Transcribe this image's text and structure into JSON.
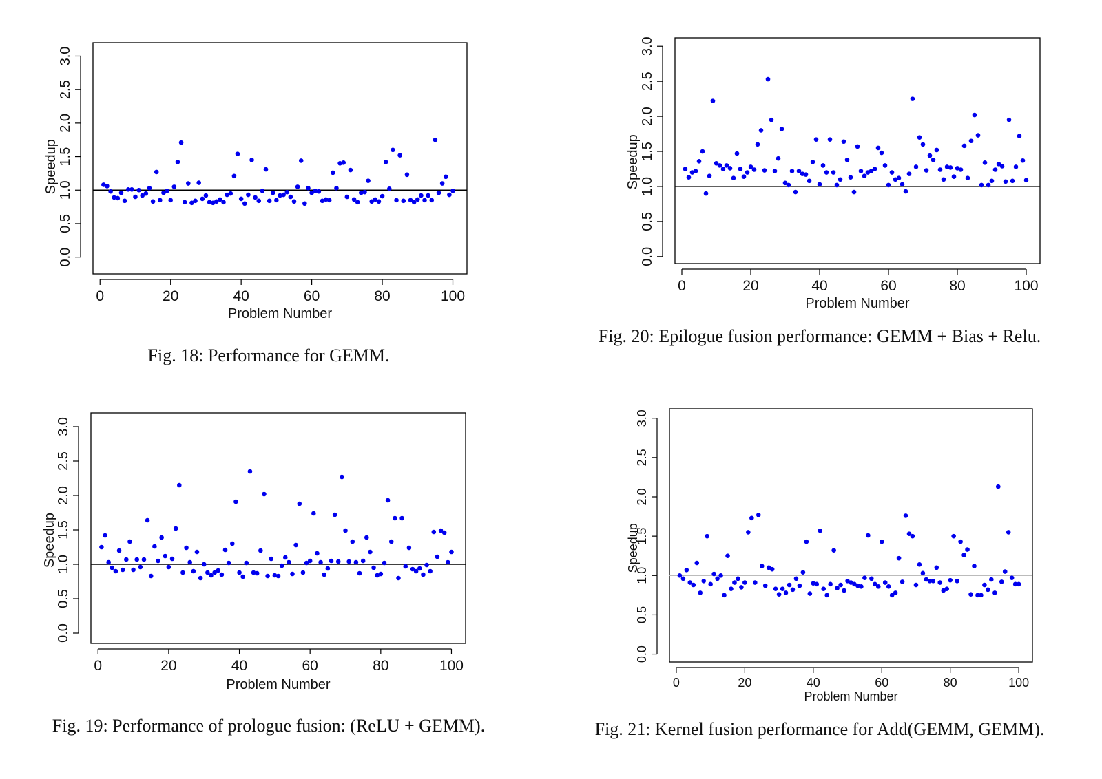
{
  "chart_data": [
    {
      "type": "scatter",
      "caption": "Fig. 18: Performance for GEMM.",
      "xlabel": "Problem Number",
      "ylabel": "Speedup",
      "xlim": [
        -2,
        104
      ],
      "ylim": [
        -0.25,
        3.2
      ],
      "xticks": [
        0,
        20,
        40,
        60,
        80,
        100
      ],
      "yticks": [
        0.0,
        0.5,
        1.0,
        1.5,
        2.0,
        2.5,
        3.0
      ],
      "reference_line": 1.0,
      "reference_color": "#000000",
      "point_color": "#0000ee",
      "grid": false,
      "x": [
        1,
        2,
        3,
        4,
        5,
        6,
        7,
        8,
        9,
        10,
        11,
        12,
        13,
        14,
        15,
        16,
        17,
        18,
        19,
        20,
        21,
        22,
        23,
        24,
        25,
        26,
        27,
        28,
        29,
        30,
        31,
        32,
        33,
        34,
        35,
        36,
        37,
        38,
        39,
        40,
        41,
        42,
        43,
        44,
        45,
        46,
        47,
        48,
        49,
        50,
        51,
        52,
        53,
        54,
        55,
        56,
        57,
        58,
        59,
        60,
        61,
        62,
        63,
        64,
        65,
        66,
        67,
        68,
        69,
        70,
        71,
        72,
        73,
        74,
        75,
        76,
        77,
        78,
        79,
        80,
        81,
        82,
        83,
        84,
        85,
        86,
        87,
        88,
        89,
        90,
        91,
        92,
        93,
        94,
        95,
        96,
        97,
        98,
        99,
        100
      ],
      "y": [
        1.08,
        1.06,
        0.98,
        0.89,
        0.88,
        0.96,
        0.84,
        1.01,
        1.01,
        0.9,
        1.0,
        0.92,
        0.95,
        1.03,
        0.83,
        1.27,
        0.85,
        0.96,
        0.99,
        0.85,
        1.05,
        1.42,
        1.71,
        0.82,
        1.1,
        0.81,
        0.84,
        1.11,
        0.87,
        0.92,
        0.82,
        0.81,
        0.83,
        0.86,
        0.82,
        0.93,
        0.95,
        1.21,
        1.54,
        0.87,
        0.8,
        0.93,
        1.45,
        0.89,
        0.84,
        0.99,
        1.31,
        0.84,
        0.96,
        0.85,
        0.92,
        0.93,
        0.97,
        0.9,
        0.83,
        1.05,
        1.44,
        0.8,
        1.03,
        0.96,
        0.99,
        0.98,
        0.84,
        0.86,
        0.85,
        1.26,
        1.03,
        1.4,
        1.41,
        0.9,
        1.3,
        0.86,
        0.82,
        0.96,
        0.97,
        1.14,
        0.83,
        0.86,
        0.83,
        0.91,
        1.42,
        1.02,
        1.6,
        0.85,
        1.52,
        0.84,
        1.23,
        0.85,
        0.82,
        0.86,
        0.92,
        0.85,
        0.92,
        0.85,
        1.75,
        0.96,
        1.1,
        1.2,
        0.93,
        0.99
      ]
    },
    {
      "type": "scatter",
      "caption": "Fig. 20: Epilogue fusion performance: GEMM + Bias + Relu.",
      "xlabel": "Problem Number",
      "ylabel": "Speedup",
      "xlim": [
        -2,
        104
      ],
      "ylim": [
        -0.1,
        3.12
      ],
      "xticks": [
        0,
        20,
        40,
        60,
        80,
        100
      ],
      "yticks": [
        0.0,
        0.5,
        1.0,
        1.5,
        2.0,
        2.5,
        3.0
      ],
      "reference_line": 1.0,
      "reference_color": "#000000",
      "point_color": "#0000ee",
      "grid": false,
      "x": [
        1,
        2,
        3,
        4,
        5,
        6,
        7,
        8,
        9,
        10,
        11,
        12,
        13,
        14,
        15,
        16,
        17,
        18,
        19,
        20,
        21,
        22,
        23,
        24,
        25,
        26,
        27,
        28,
        29,
        30,
        31,
        32,
        33,
        34,
        35,
        36,
        37,
        38,
        39,
        40,
        41,
        42,
        43,
        44,
        45,
        46,
        47,
        48,
        49,
        50,
        51,
        52,
        53,
        54,
        55,
        56,
        57,
        58,
        59,
        60,
        61,
        62,
        63,
        64,
        65,
        66,
        67,
        68,
        69,
        70,
        71,
        72,
        73,
        74,
        75,
        76,
        77,
        78,
        79,
        80,
        81,
        82,
        83,
        84,
        85,
        86,
        87,
        88,
        89,
        90,
        91,
        92,
        93,
        94,
        95,
        96,
        97,
        98,
        99,
        100
      ],
      "y": [
        1.25,
        1.13,
        1.2,
        1.22,
        1.36,
        1.5,
        0.9,
        1.15,
        2.22,
        1.33,
        1.3,
        1.25,
        1.3,
        1.26,
        1.12,
        1.47,
        1.25,
        1.14,
        1.2,
        1.28,
        1.24,
        1.6,
        1.8,
        1.23,
        2.53,
        1.95,
        1.22,
        1.4,
        1.82,
        1.05,
        1.02,
        1.22,
        0.92,
        1.22,
        1.18,
        1.17,
        1.08,
        1.35,
        1.67,
        1.03,
        1.3,
        1.2,
        1.67,
        1.2,
        1.02,
        1.1,
        1.64,
        1.38,
        1.13,
        0.92,
        1.57,
        1.22,
        1.15,
        1.2,
        1.22,
        1.25,
        1.55,
        1.48,
        1.3,
        1.02,
        1.2,
        1.1,
        1.12,
        1.03,
        0.93,
        1.18,
        2.25,
        1.28,
        1.7,
        1.6,
        1.23,
        1.44,
        1.38,
        1.52,
        1.24,
        1.1,
        1.28,
        1.27,
        1.14,
        1.26,
        1.24,
        1.58,
        1.12,
        1.65,
        2.02,
        1.73,
        1.02,
        1.34,
        1.02,
        1.08,
        1.24,
        1.32,
        1.29,
        1.07,
        1.95,
        1.08,
        1.28,
        1.72,
        1.37,
        1.09
      ]
    },
    {
      "type": "scatter",
      "caption": "Fig. 19: Performance of prologue fusion: (ReLU + GEMM).",
      "xlabel": "Problem Number",
      "ylabel": "Speedup",
      "xlim": [
        -2,
        104
      ],
      "ylim": [
        -0.15,
        3.2
      ],
      "xticks": [
        0,
        20,
        40,
        60,
        80,
        100
      ],
      "yticks": [
        0.0,
        0.5,
        1.0,
        1.5,
        2.0,
        2.5,
        3.0
      ],
      "reference_line": 1.0,
      "reference_color": "#000000",
      "point_color": "#0000ee",
      "grid": false,
      "x": [
        1,
        2,
        3,
        4,
        5,
        6,
        7,
        8,
        9,
        10,
        11,
        12,
        13,
        14,
        15,
        16,
        17,
        18,
        19,
        20,
        21,
        22,
        23,
        24,
        25,
        26,
        27,
        28,
        29,
        30,
        31,
        32,
        33,
        34,
        35,
        36,
        37,
        38,
        39,
        40,
        41,
        42,
        43,
        44,
        45,
        46,
        47,
        48,
        49,
        50,
        51,
        52,
        53,
        54,
        55,
        56,
        57,
        58,
        59,
        60,
        61,
        62,
        63,
        64,
        65,
        66,
        67,
        68,
        69,
        70,
        71,
        72,
        73,
        74,
        75,
        76,
        77,
        78,
        79,
        80,
        81,
        82,
        83,
        84,
        85,
        86,
        87,
        88,
        89,
        90,
        91,
        92,
        93,
        94,
        95,
        96,
        97,
        98,
        99,
        100
      ],
      "y": [
        1.25,
        1.42,
        1.03,
        0.95,
        0.9,
        1.2,
        0.92,
        1.07,
        1.33,
        0.92,
        1.07,
        0.96,
        1.07,
        1.64,
        0.83,
        1.26,
        1.05,
        1.39,
        1.12,
        0.96,
        1.08,
        1.52,
        2.15,
        0.88,
        1.24,
        1.03,
        0.9,
        1.18,
        0.8,
        1.0,
        0.88,
        0.84,
        0.88,
        0.91,
        0.85,
        1.21,
        1.02,
        1.3,
        1.91,
        0.88,
        0.82,
        1.02,
        2.35,
        0.88,
        0.87,
        1.2,
        2.02,
        0.83,
        1.08,
        0.84,
        0.83,
        0.98,
        1.1,
        1.03,
        0.86,
        1.28,
        1.88,
        0.88,
        1.02,
        1.05,
        1.74,
        1.16,
        1.03,
        0.85,
        0.94,
        1.05,
        1.72,
        1.04,
        2.27,
        1.49,
        1.04,
        1.33,
        1.03,
        0.87,
        1.05,
        1.39,
        1.18,
        0.95,
        0.84,
        0.86,
        1.02,
        1.93,
        1.33,
        1.67,
        0.8,
        1.67,
        0.97,
        1.24,
        0.93,
        0.9,
        0.94,
        0.85,
        0.99,
        0.9,
        1.47,
        1.11,
        1.49,
        1.46,
        1.03,
        1.18
      ]
    },
    {
      "type": "scatter",
      "caption": "Fig. 21: Kernel fusion performance for Add(GEMM, GEMM).",
      "xlabel": "Problem Number",
      "ylabel": "Speedup",
      "xlim": [
        -2,
        104
      ],
      "ylim": [
        -0.1,
        3.12
      ],
      "xticks": [
        0,
        20,
        40,
        60,
        80,
        100
      ],
      "yticks": [
        0.0,
        0.5,
        1.0,
        1.5,
        2.0,
        2.5,
        3.0
      ],
      "reference_line": 1.0,
      "reference_color": "#bbbbbb",
      "point_color": "#0000ee",
      "grid": false,
      "x": [
        1,
        2,
        3,
        4,
        5,
        6,
        7,
        8,
        9,
        10,
        11,
        12,
        13,
        14,
        15,
        16,
        17,
        18,
        19,
        20,
        21,
        22,
        23,
        24,
        25,
        26,
        27,
        28,
        29,
        30,
        31,
        32,
        33,
        34,
        35,
        36,
        37,
        38,
        39,
        40,
        41,
        42,
        43,
        44,
        45,
        46,
        47,
        48,
        49,
        50,
        51,
        52,
        53,
        54,
        55,
        56,
        57,
        58,
        59,
        60,
        61,
        62,
        63,
        64,
        65,
        66,
        67,
        68,
        69,
        70,
        71,
        72,
        73,
        74,
        75,
        76,
        77,
        78,
        79,
        80,
        81,
        82,
        83,
        84,
        85,
        86,
        87,
        88,
        89,
        90,
        91,
        92,
        93,
        94,
        95,
        96,
        97,
        98,
        99,
        100
      ],
      "y": [
        1.0,
        0.96,
        1.07,
        0.91,
        0.88,
        1.16,
        0.78,
        0.93,
        1.5,
        0.89,
        1.02,
        0.96,
        1.0,
        0.75,
        1.25,
        0.83,
        0.91,
        0.96,
        0.85,
        0.91,
        1.55,
        1.73,
        0.91,
        1.77,
        1.12,
        0.87,
        1.1,
        1.08,
        0.83,
        0.76,
        0.83,
        0.78,
        0.88,
        0.82,
        0.96,
        0.87,
        1.04,
        1.43,
        0.77,
        0.9,
        0.89,
        1.57,
        0.83,
        0.75,
        0.89,
        1.32,
        0.84,
        0.88,
        0.81,
        0.93,
        0.91,
        0.89,
        0.87,
        0.86,
        0.97,
        1.51,
        0.96,
        0.89,
        0.86,
        1.43,
        0.91,
        0.86,
        0.75,
        0.78,
        1.22,
        0.92,
        1.76,
        1.53,
        1.5,
        0.88,
        1.14,
        1.03,
        0.95,
        0.93,
        0.93,
        1.1,
        0.91,
        0.81,
        0.83,
        0.94,
        1.5,
        0.93,
        1.43,
        1.26,
        1.33,
        0.76,
        1.12,
        0.75,
        0.75,
        0.88,
        0.82,
        0.95,
        0.78,
        2.13,
        0.92,
        1.05,
        1.55,
        0.97,
        0.89,
        0.89
      ]
    }
  ]
}
